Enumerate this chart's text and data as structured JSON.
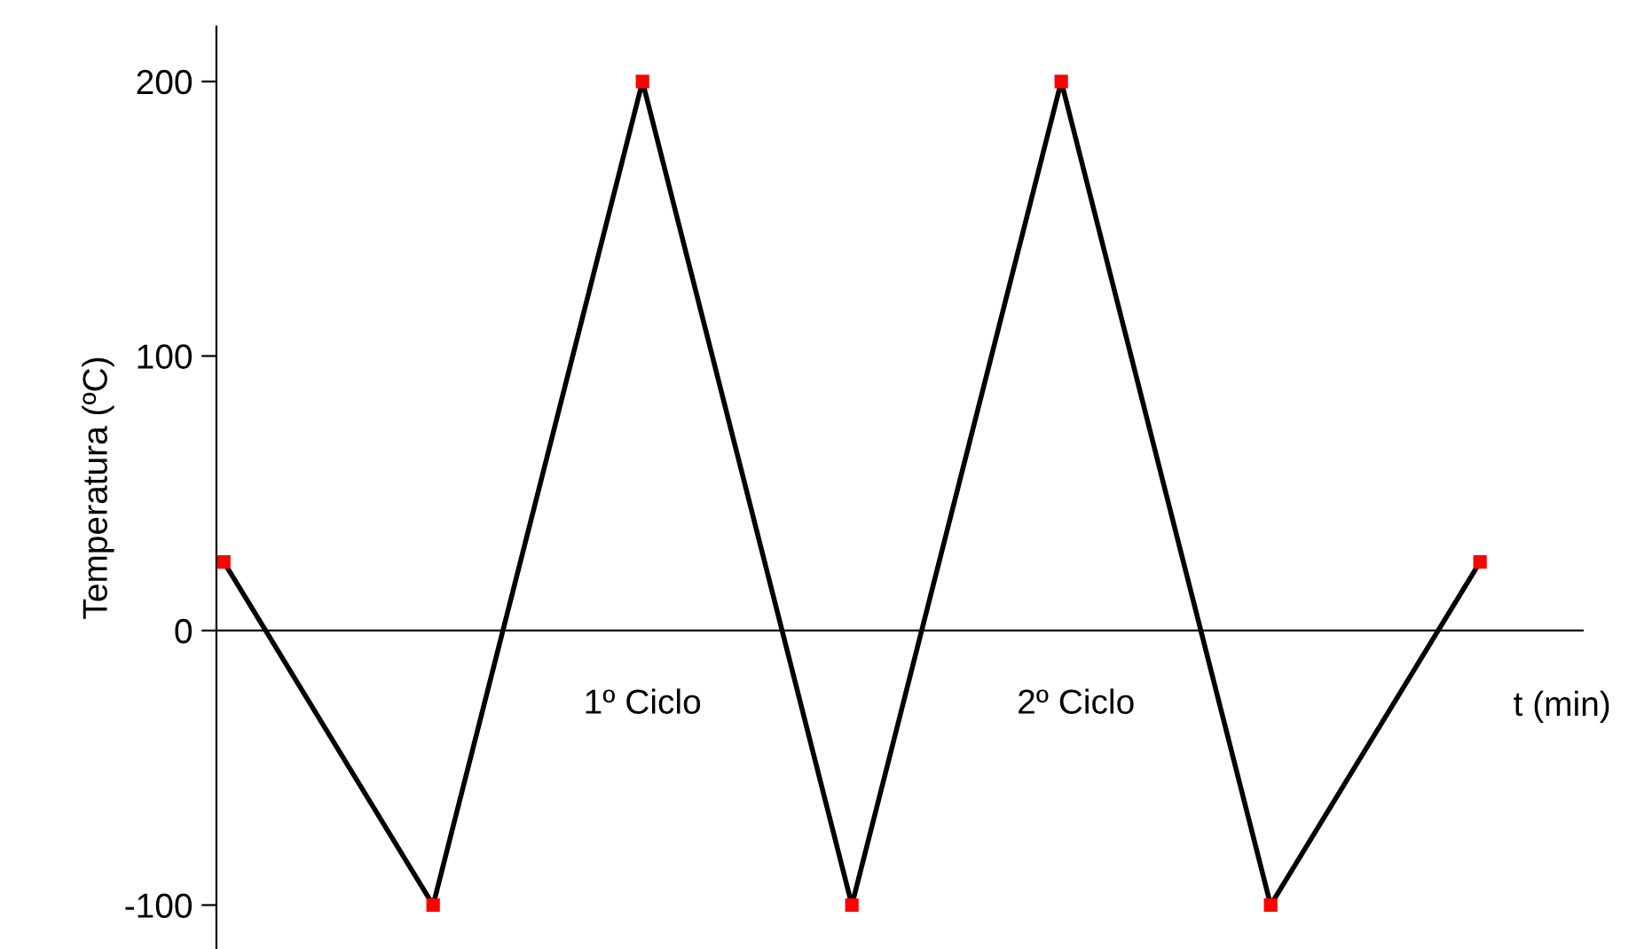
{
  "chart_data": {
    "type": "line",
    "ylabel": "Temperatura (ºC)",
    "xlabel": "t (min)",
    "categories": [
      null,
      null,
      null,
      null,
      null,
      null,
      null
    ],
    "series": [
      {
        "color": "#000000",
        "marker": "none",
        "values": [
          25,
          -100,
          200,
          -100,
          200,
          -100,
          25
        ]
      },
      {
        "type": "scatter",
        "color": "#ff0000",
        "marker": "square",
        "values": [
          25,
          -100,
          200,
          -100,
          200,
          -100,
          25
        ]
      }
    ],
    "annotations": [
      "1º Ciclo",
      "2º Ciclo"
    ],
    "ylim": [
      -116,
      220
    ],
    "yticks": [
      -100,
      0,
      100,
      200
    ],
    "legend": false,
    "tick_labels": "y"
  }
}
